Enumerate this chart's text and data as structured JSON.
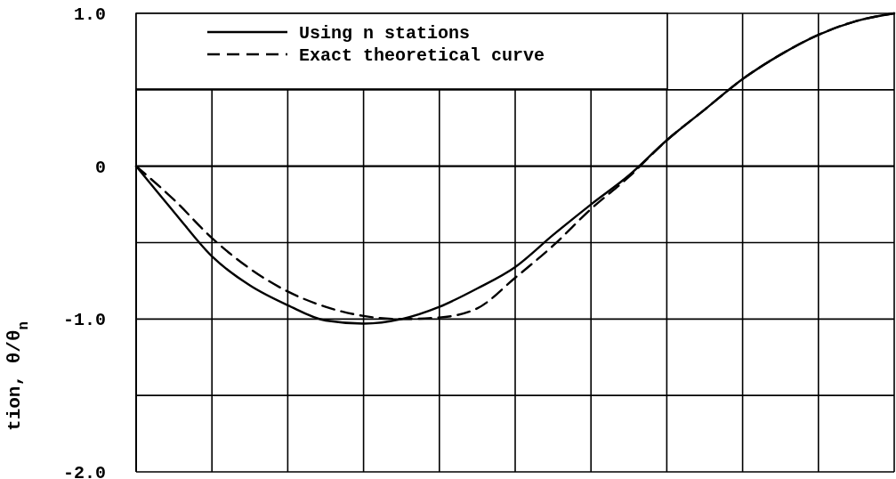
{
  "chart_data": {
    "type": "line",
    "ylabel": "tion, θ/θ$_{n}$",
    "categories": [
      null,
      null,
      null,
      null,
      null,
      null,
      null,
      null,
      null,
      null,
      null,
      null,
      null,
      null,
      null,
      null,
      null,
      null,
      null,
      null,
      null
    ],
    "ylim": [
      -2.0,
      1.0
    ],
    "yticks": [
      {
        "value": 1.0,
        "label": "1.0"
      },
      {
        "value": 0.5,
        "label": null
      },
      {
        "value": 0,
        "label": "0"
      },
      {
        "value": -0.5,
        "label": null
      },
      {
        "value": -1.0,
        "label": "-1.0"
      },
      {
        "value": -1.5,
        "label": null
      },
      {
        "value": -2.0,
        "label": "-2.0"
      }
    ],
    "grid": true,
    "legend": "top left",
    "series": [
      {
        "name": "Using n stations",
        "color": "#000000",
        "line_style": "solid",
        "values": [
          0,
          -0.3,
          -0.59,
          -0.78,
          -0.91,
          -1.01,
          -1.03,
          -1.0,
          -0.92,
          -0.8,
          -0.66,
          -0.45,
          -0.25,
          -0.06,
          0.17,
          0.37,
          0.57,
          0.73,
          0.86,
          0.95,
          1.0
        ]
      },
      {
        "name": "Exact theoretical curve",
        "color": "#000000",
        "line_style": "dashed",
        "values": [
          0,
          -0.22,
          -0.47,
          -0.67,
          -0.82,
          -0.92,
          -0.98,
          -1.0,
          -0.99,
          -0.93,
          -0.73,
          -0.52,
          -0.28,
          -0.07,
          0.17,
          0.37,
          0.57,
          0.73,
          0.86,
          0.95,
          1.0
        ]
      }
    ]
  }
}
